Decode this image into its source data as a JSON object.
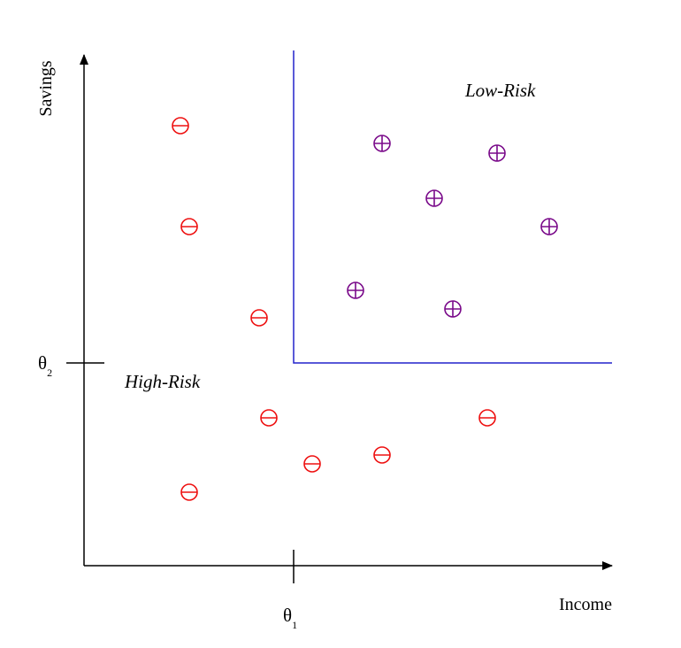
{
  "axes": {
    "y_label": "Savings",
    "x_label": "Income",
    "theta1": {
      "base": "θ",
      "sub": "1"
    },
    "theta2": {
      "base": "θ",
      "sub": "2"
    }
  },
  "regions": {
    "low_risk": "Low-Risk",
    "high_risk": "High-Risk"
  },
  "colors": {
    "axis": "#000000",
    "boundary": "#2222cc",
    "negative": "#ee1111",
    "positive": "#7a0a8a"
  },
  "legend_symbols": {
    "negative": "circle-minus-icon",
    "positive": "circle-plus-icon"
  }
}
